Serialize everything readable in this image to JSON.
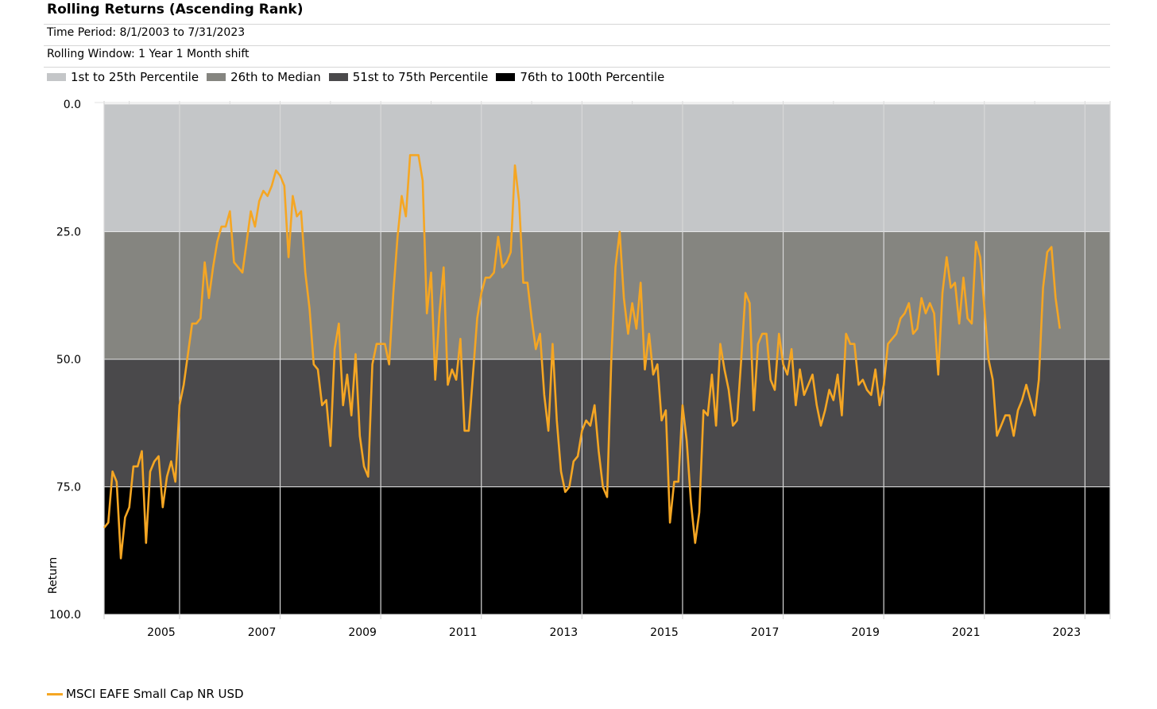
{
  "header": {
    "title": "Rolling Returns (Ascending Rank)",
    "time_period": "Time Period: 8/1/2003 to 7/31/2023",
    "rolling_window": "Rolling Window: 1 Year 1 Month shift"
  },
  "bands": [
    {
      "label": "1st to 25th Percentile",
      "color": "#c4c6c8",
      "from": 0,
      "to": 25
    },
    {
      "label": "26th to Median",
      "color": "#858580",
      "from": 25,
      "to": 50
    },
    {
      "label": "51st to 75th Percentile",
      "color": "#4a494b",
      "from": 50,
      "to": 75
    },
    {
      "label": "76th to 100th Percentile",
      "color": "#000000",
      "from": 75,
      "to": 100
    }
  ],
  "chart_data": {
    "type": "line",
    "title": "Rolling Returns (Ascending Rank)",
    "xlabel": "",
    "ylabel": "Return",
    "ylim": [
      0,
      100
    ],
    "y_inverted": true,
    "y_ticks": [
      "0.0",
      "25.0",
      "50.0",
      "75.0",
      "100.0"
    ],
    "x_ticks": [
      "2005",
      "2007",
      "2009",
      "2011",
      "2013",
      "2015",
      "2017",
      "2019",
      "2021",
      "2023"
    ],
    "x_range": [
      "2003-07",
      "2023-07"
    ],
    "grid": true,
    "line_color": "#f5a623",
    "series": [
      {
        "name": "MSCI EAFE Small Cap NR USD",
        "start": "2003-07",
        "frequency": "monthly",
        "values": [
          83,
          82,
          72,
          74,
          89,
          81,
          79,
          71,
          71,
          68,
          86,
          72,
          70,
          69,
          79,
          73,
          70,
          74,
          59,
          55,
          49,
          43,
          43,
          42,
          31,
          38,
          32,
          27,
          24,
          24,
          21,
          31,
          32,
          33,
          27,
          21,
          24,
          19,
          17,
          18,
          16,
          13,
          14,
          16,
          30,
          18,
          22,
          21,
          33,
          40,
          51,
          52,
          59,
          58,
          67,
          48,
          43,
          59,
          53,
          61,
          49,
          65,
          71,
          73,
          51,
          47,
          47,
          47,
          51,
          37,
          26,
          18,
          22,
          10,
          10,
          10,
          15,
          41,
          33,
          54,
          41,
          32,
          55,
          52,
          54,
          46,
          64,
          64,
          53,
          42,
          37,
          34,
          34,
          33,
          26,
          32,
          31,
          29,
          12,
          19,
          35,
          35,
          42,
          48,
          45,
          57,
          64,
          47,
          62,
          72,
          76,
          75,
          70,
          69,
          64,
          62,
          63,
          59,
          68,
          75,
          77,
          50,
          32,
          25,
          38,
          45,
          39,
          44,
          35,
          52,
          45,
          53,
          51,
          62,
          60,
          82,
          74,
          74,
          59,
          66,
          78,
          86,
          80,
          60,
          61,
          53,
          63,
          47,
          52,
          56,
          63,
          62,
          50,
          37,
          39,
          60,
          47,
          45,
          45,
          54,
          56,
          45,
          51,
          53,
          48,
          59,
          52,
          57,
          55,
          53,
          59,
          63,
          60,
          56,
          58,
          53,
          61,
          45,
          47,
          47,
          55,
          54,
          56,
          57,
          52,
          59,
          55,
          47,
          46,
          45,
          42,
          41,
          39,
          45,
          44,
          38,
          41,
          39,
          41,
          53,
          37,
          30,
          36,
          35,
          43,
          34,
          42,
          43,
          27,
          30,
          40,
          50,
          54,
          65,
          63,
          61,
          61,
          65,
          60,
          58,
          55,
          58,
          61,
          54,
          36,
          29,
          28,
          38,
          44
        ]
      }
    ]
  },
  "footer": {
    "legend_label": "MSCI EAFE Small Cap NR USD"
  }
}
